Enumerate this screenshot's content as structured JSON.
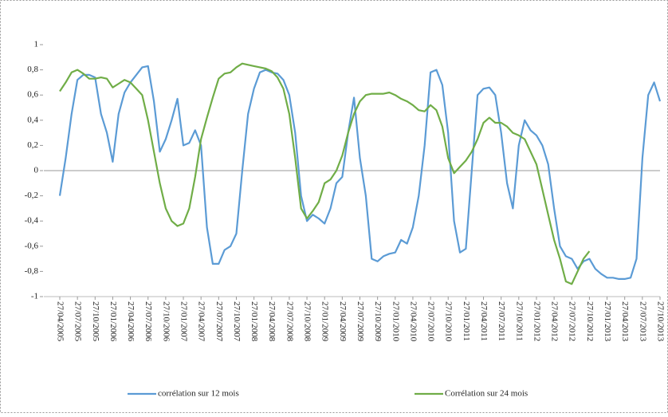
{
  "chart_data": {
    "type": "line",
    "categories": [
      "27/04/2005",
      null,
      null,
      "27/07/2005",
      null,
      null,
      "27/10/2005",
      null,
      null,
      "27/01/2006",
      null,
      null,
      "27/04/2006",
      null,
      null,
      "27/07/2006",
      null,
      null,
      "27/10/2006",
      null,
      null,
      "27/01/2007",
      null,
      null,
      "27/04/2007",
      null,
      null,
      "27/07/2007",
      null,
      null,
      "27/10/2007",
      null,
      null,
      "27/01/2008",
      null,
      null,
      "27/04/2008",
      null,
      null,
      "27/07/2008",
      null,
      null,
      "27/10/2008",
      null,
      null,
      "27/01/2009",
      null,
      null,
      "27/04/2009",
      null,
      null,
      "27/07/2009",
      null,
      null,
      "27/10/2009",
      null,
      null,
      "27/01/2010",
      null,
      null,
      "27/04/2010",
      null,
      null,
      "27/07/2010",
      null,
      null,
      "27/10/2010",
      null,
      null,
      "27/01/2011",
      null,
      null,
      "27/04/2011",
      null,
      null,
      "27/07/2011",
      null,
      null,
      "27/10/2011",
      null,
      null,
      "27/01/2012",
      null,
      null,
      "27/04/2012",
      null,
      null,
      "27/07/2012",
      null,
      null,
      "27/10/2012",
      null,
      null,
      "27/01/2013",
      null,
      null,
      "27/04/2013",
      null,
      null,
      "27/07/2013",
      null,
      null,
      "27/10/2013"
    ],
    "series": [
      {
        "name": "corrélation sur 12 mois",
        "color": "#5b9bd5",
        "values": [
          -0.2,
          0.1,
          0.45,
          0.72,
          0.76,
          0.76,
          0.74,
          0.45,
          0.3,
          0.07,
          0.45,
          0.62,
          0.7,
          0.76,
          0.82,
          0.83,
          0.55,
          0.15,
          0.25,
          0.4,
          0.57,
          0.2,
          0.22,
          0.32,
          0.2,
          -0.45,
          -0.74,
          -0.74,
          -0.63,
          -0.6,
          -0.5,
          0.0,
          0.45,
          0.65,
          0.78,
          0.8,
          0.78,
          0.77,
          0.72,
          0.6,
          0.3,
          -0.2,
          -0.4,
          -0.35,
          -0.38,
          -0.42,
          -0.3,
          -0.1,
          -0.05,
          0.3,
          0.58,
          0.1,
          -0.2,
          -0.7,
          -0.72,
          -0.68,
          -0.66,
          -0.65,
          -0.55,
          -0.58,
          -0.45,
          -0.2,
          0.2,
          0.78,
          0.8,
          0.68,
          0.3,
          -0.4,
          -0.65,
          -0.62,
          0.0,
          0.6,
          0.65,
          0.66,
          0.6,
          0.3,
          -0.1,
          -0.3,
          0.2,
          0.4,
          0.32,
          0.28,
          0.2,
          0.05,
          -0.3,
          -0.6,
          -0.68,
          -0.7,
          -0.78,
          -0.72,
          -0.7,
          -0.78,
          -0.82,
          -0.85,
          -0.85,
          -0.86,
          -0.86,
          -0.85,
          -0.7,
          0.1,
          0.6,
          0.7,
          0.55
        ]
      },
      {
        "name": "Corrélation sur 24 mois",
        "color": "#70ad47",
        "values": [
          0.63,
          0.7,
          0.78,
          0.8,
          0.77,
          0.73,
          0.73,
          0.74,
          0.73,
          0.66,
          0.69,
          0.72,
          0.7,
          0.65,
          0.6,
          0.4,
          0.15,
          -0.1,
          -0.3,
          -0.4,
          -0.44,
          -0.42,
          -0.3,
          -0.05,
          0.25,
          0.42,
          0.58,
          0.73,
          0.77,
          0.78,
          0.82,
          0.85,
          0.84,
          0.83,
          0.82,
          0.81,
          0.79,
          0.74,
          0.65,
          0.45,
          0.1,
          -0.3,
          -0.38,
          -0.32,
          -0.25,
          -0.1,
          -0.07,
          0.0,
          0.12,
          0.3,
          0.45,
          0.55,
          0.6,
          0.61,
          0.61,
          0.61,
          0.62,
          0.6,
          0.57,
          0.55,
          0.52,
          0.48,
          0.47,
          0.52,
          0.48,
          0.35,
          0.1,
          -0.02,
          0.03,
          0.08,
          0.15,
          0.25,
          0.38,
          0.42,
          0.38,
          0.38,
          0.35,
          0.3,
          0.28,
          0.25,
          0.15,
          0.05,
          -0.15,
          -0.35,
          -0.55,
          -0.7,
          -0.88,
          -0.9,
          -0.8,
          -0.7,
          -0.64,
          null,
          null,
          null,
          null,
          null,
          null,
          null,
          null,
          null,
          null,
          null,
          null
        ]
      }
    ],
    "ylim": [
      -1,
      1
    ],
    "yticks": [
      -1,
      {
        "value": -0.8,
        "label": "-0,8"
      },
      {
        "value": -0.6,
        "label": "-0,6"
      },
      {
        "value": -0.4,
        "label": "-0,4"
      },
      {
        "value": -0.2,
        "label": "-0,2"
      },
      0,
      {
        "value": 0.2,
        "label": "0,2"
      },
      {
        "value": 0.4,
        "label": "0,4"
      },
      {
        "value": 0.6,
        "label": "0,6"
      },
      {
        "value": 0.8,
        "label": "0,8"
      },
      1
    ],
    "legend": "bottom"
  }
}
